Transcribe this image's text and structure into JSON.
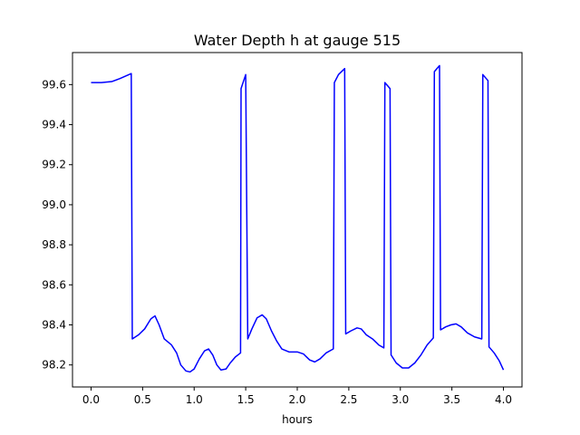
{
  "chart_data": {
    "type": "line",
    "title": "Water Depth h at gauge 515",
    "xlabel": "hours",
    "ylabel": "",
    "xlim": [
      -0.18,
      4.18
    ],
    "ylim": [
      98.09,
      99.76
    ],
    "xticks": [
      0.0,
      0.5,
      1.0,
      1.5,
      2.0,
      2.5,
      3.0,
      3.5,
      4.0
    ],
    "xtick_labels": [
      "0.0",
      "0.5",
      "1.0",
      "1.5",
      "2.0",
      "2.5",
      "3.0",
      "3.5",
      "4.0"
    ],
    "yticks": [
      98.2,
      98.4,
      98.6,
      98.8,
      99.0,
      99.2,
      99.4,
      99.6
    ],
    "ytick_labels": [
      "98.2",
      "98.4",
      "98.6",
      "98.8",
      "99.0",
      "99.2",
      "99.4",
      "99.6"
    ],
    "grid": false,
    "series": [
      {
        "color": "#0000ff",
        "x": [
          0.0,
          0.1,
          0.2,
          0.28,
          0.39,
          0.4,
          0.46,
          0.52,
          0.58,
          0.62,
          0.66,
          0.71,
          0.78,
          0.83,
          0.87,
          0.92,
          0.96,
          1.0,
          1.05,
          1.1,
          1.14,
          1.18,
          1.22,
          1.26,
          1.31,
          1.35,
          1.4,
          1.45,
          1.455,
          1.5,
          1.52,
          1.56,
          1.61,
          1.66,
          1.7,
          1.75,
          1.8,
          1.85,
          1.92,
          2.0,
          2.06,
          2.12,
          2.17,
          2.22,
          2.28,
          2.35,
          2.36,
          2.4,
          2.46,
          2.47,
          2.52,
          2.58,
          2.62,
          2.67,
          2.73,
          2.79,
          2.84,
          2.85,
          2.9,
          2.91,
          2.96,
          3.02,
          3.08,
          3.14,
          3.2,
          3.26,
          3.32,
          3.33,
          3.38,
          3.39,
          3.44,
          3.49,
          3.54,
          3.59,
          3.65,
          3.72,
          3.79,
          3.8,
          3.85,
          3.86,
          3.91,
          3.96,
          4.0
        ],
        "y": [
          99.61,
          99.61,
          99.615,
          99.63,
          99.655,
          98.33,
          98.35,
          98.38,
          98.43,
          98.445,
          98.4,
          98.33,
          98.3,
          98.26,
          98.2,
          98.17,
          98.165,
          98.18,
          98.23,
          98.27,
          98.28,
          98.25,
          98.2,
          98.175,
          98.18,
          98.21,
          98.24,
          98.26,
          99.58,
          99.65,
          98.33,
          98.38,
          98.435,
          98.45,
          98.43,
          98.37,
          98.32,
          98.28,
          98.265,
          98.265,
          98.255,
          98.225,
          98.215,
          98.23,
          98.26,
          98.28,
          99.61,
          99.65,
          99.68,
          98.355,
          98.37,
          98.385,
          98.38,
          98.35,
          98.33,
          98.3,
          98.285,
          99.61,
          99.58,
          98.25,
          98.21,
          98.185,
          98.185,
          98.21,
          98.25,
          98.3,
          98.335,
          99.665,
          99.695,
          98.375,
          98.39,
          98.4,
          98.405,
          98.39,
          98.36,
          98.34,
          98.33,
          99.65,
          99.62,
          98.29,
          98.26,
          98.22,
          98.175
        ]
      }
    ]
  }
}
